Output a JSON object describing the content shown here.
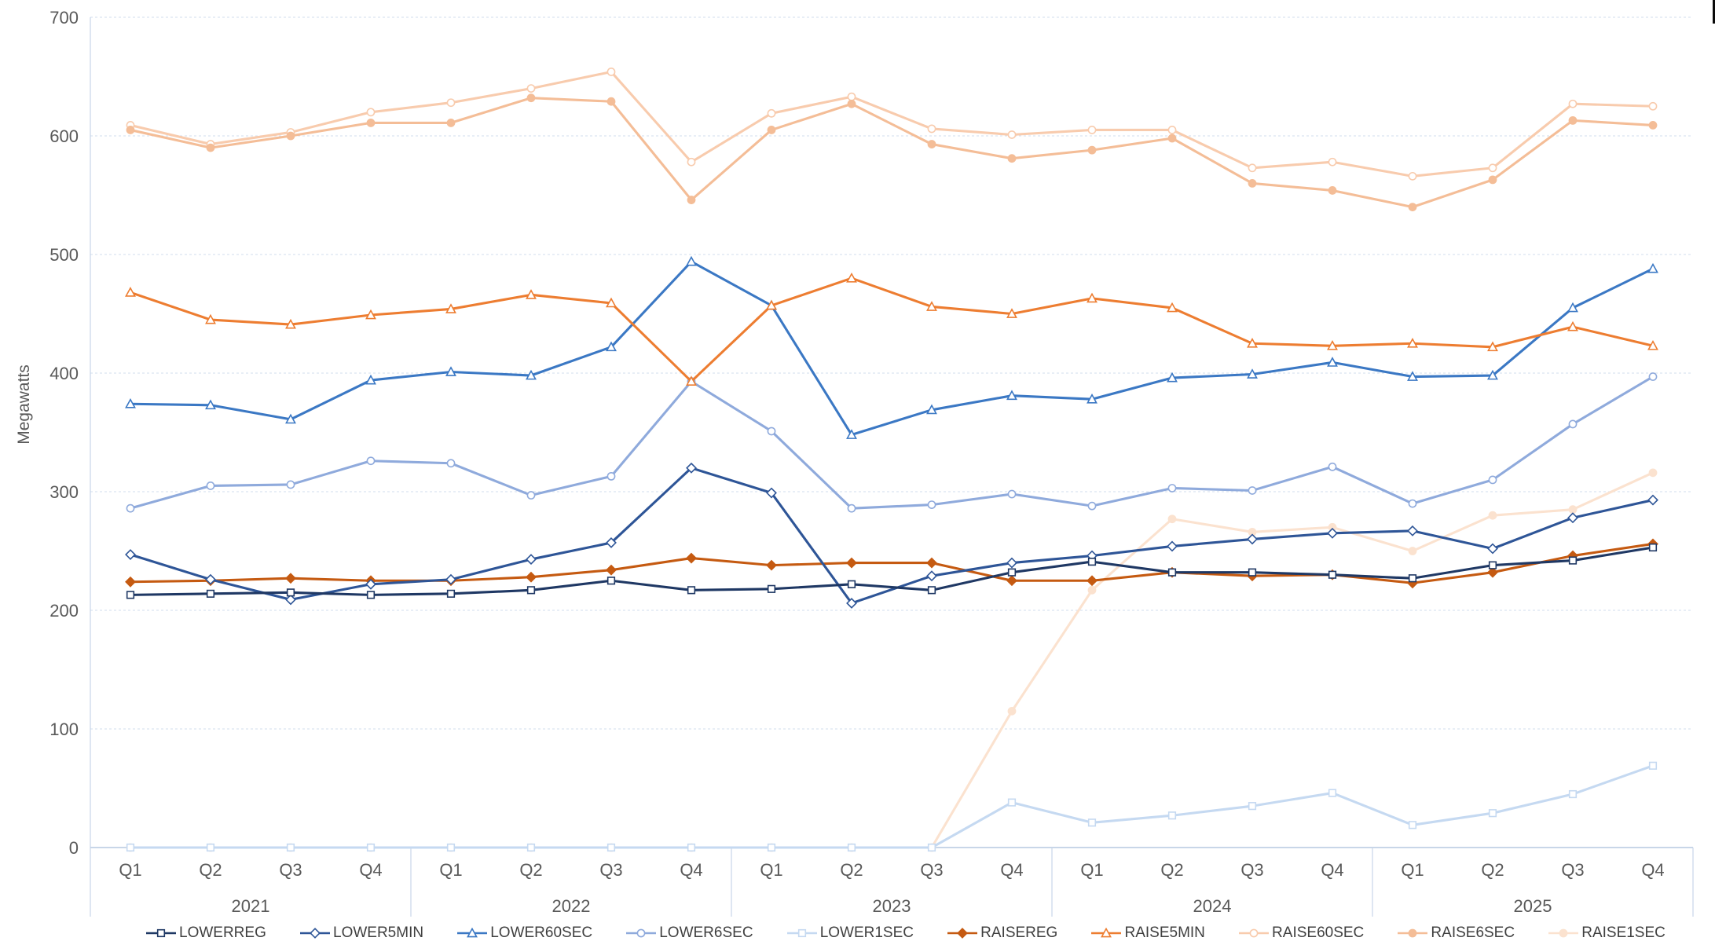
{
  "chart_data": {
    "type": "line",
    "title": "",
    "ylabel": "Megawatts",
    "ylim": [
      0,
      700
    ],
    "ytick_step": 100,
    "yticks": [
      0,
      100,
      200,
      300,
      400,
      500,
      600,
      700
    ],
    "grid": "horizontal-dashed",
    "legend_position": "bottom",
    "x_year_groups": [
      {
        "year": "2021",
        "quarters": [
          "Q1",
          "Q2",
          "Q3",
          "Q4"
        ]
      },
      {
        "year": "2022",
        "quarters": [
          "Q1",
          "Q2",
          "Q3",
          "Q4"
        ]
      },
      {
        "year": "2023",
        "quarters": [
          "Q1",
          "Q2",
          "Q3",
          "Q4"
        ]
      },
      {
        "year": "2024",
        "quarters": [
          "Q1",
          "Q2",
          "Q3",
          "Q4"
        ]
      },
      {
        "year": "2025",
        "quarters": [
          "Q1",
          "Q2",
          "Q3",
          "Q4"
        ]
      }
    ],
    "series": [
      {
        "name": "LOWERREG",
        "color": "#1f3864",
        "marker": "square",
        "marker_fill": "open",
        "values": [
          213,
          214,
          215,
          213,
          214,
          217,
          225,
          217,
          218,
          222,
          217,
          232,
          241,
          232,
          232,
          230,
          227,
          238,
          242,
          253
        ]
      },
      {
        "name": "LOWER5MIN",
        "color": "#2e5597",
        "marker": "diamond",
        "marker_fill": "open",
        "values": [
          247,
          226,
          209,
          222,
          226,
          243,
          257,
          320,
          299,
          206,
          229,
          240,
          246,
          254,
          260,
          265,
          267,
          252,
          278,
          293
        ]
      },
      {
        "name": "LOWER60SEC",
        "color": "#3b78c4",
        "marker": "triangle",
        "marker_fill": "open",
        "values": [
          374,
          373,
          361,
          394,
          401,
          398,
          422,
          494,
          457,
          348,
          369,
          381,
          378,
          396,
          399,
          409,
          397,
          398,
          455,
          488
        ]
      },
      {
        "name": "LOWER6SEC",
        "color": "#8faadc",
        "marker": "circle",
        "marker_fill": "open",
        "values": [
          286,
          305,
          306,
          326,
          324,
          297,
          313,
          393,
          351,
          286,
          289,
          298,
          288,
          303,
          301,
          321,
          290,
          310,
          357,
          397
        ]
      },
      {
        "name": "LOWER1SEC",
        "color": "#c5d9f1",
        "marker": "square",
        "marker_fill": "open",
        "values": [
          0,
          0,
          0,
          0,
          0,
          0,
          0,
          0,
          0,
          0,
          0,
          38,
          21,
          27,
          35,
          46,
          19,
          29,
          45,
          69
        ]
      },
      {
        "name": "RAISEREG",
        "color": "#c55a11",
        "marker": "diamond",
        "marker_fill": "solid",
        "values": [
          224,
          225,
          227,
          225,
          225,
          228,
          234,
          244,
          238,
          240,
          240,
          225,
          225,
          232,
          229,
          230,
          223,
          232,
          246,
          256
        ]
      },
      {
        "name": "RAISE5MIN",
        "color": "#ed7d31",
        "marker": "triangle",
        "marker_fill": "open",
        "values": [
          468,
          445,
          441,
          449,
          454,
          466,
          459,
          393,
          457,
          480,
          456,
          450,
          463,
          455,
          425,
          423,
          425,
          422,
          439,
          423
        ]
      },
      {
        "name": "RAISE60SEC",
        "color": "#f8cbad",
        "marker": "circle",
        "marker_fill": "open",
        "values": [
          609,
          593,
          603,
          620,
          628,
          640,
          654,
          578,
          619,
          633,
          606,
          601,
          605,
          605,
          573,
          578,
          566,
          573,
          627,
          625
        ]
      },
      {
        "name": "RAISE6SEC",
        "color": "#f4bd97",
        "marker": "circle",
        "marker_fill": "solid",
        "values": [
          605,
          590,
          600,
          611,
          611,
          632,
          629,
          546,
          605,
          627,
          593,
          581,
          588,
          598,
          560,
          554,
          540,
          563,
          613,
          609
        ]
      },
      {
        "name": "RAISE1SEC",
        "color": "#fbe2cf",
        "marker": "circle",
        "marker_fill": "solid",
        "values": [
          0,
          0,
          0,
          0,
          0,
          0,
          0,
          0,
          0,
          0,
          0,
          115,
          217,
          277,
          266,
          270,
          250,
          280,
          285,
          316
        ]
      }
    ],
    "axis_colors": {
      "grid": "#d9e3f1",
      "axis_line": "#b5c9e0",
      "divider": "#c8d6e8",
      "tick_label": "#595959"
    }
  }
}
